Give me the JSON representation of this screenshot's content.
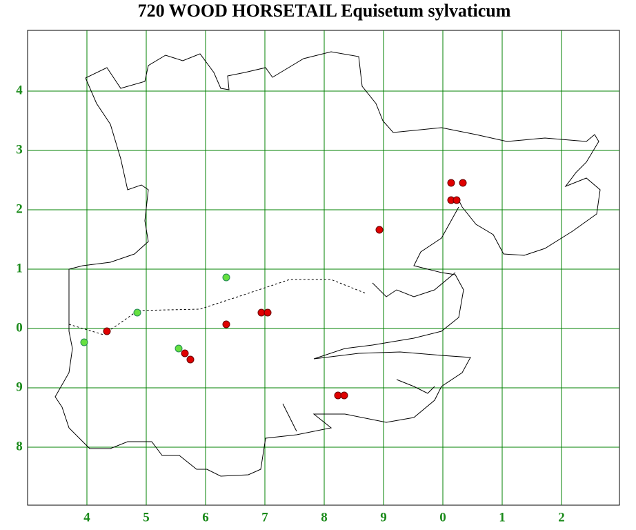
{
  "header": {
    "title": "720 WOOD HORSETAIL Equisetum sylvaticum"
  },
  "grid": {
    "x_labels": [
      "4",
      "5",
      "6",
      "7",
      "8",
      "9",
      "0",
      "1",
      "2"
    ],
    "y_labels": [
      "4",
      "3",
      "2",
      "1",
      "0",
      "9",
      "8"
    ]
  }
}
